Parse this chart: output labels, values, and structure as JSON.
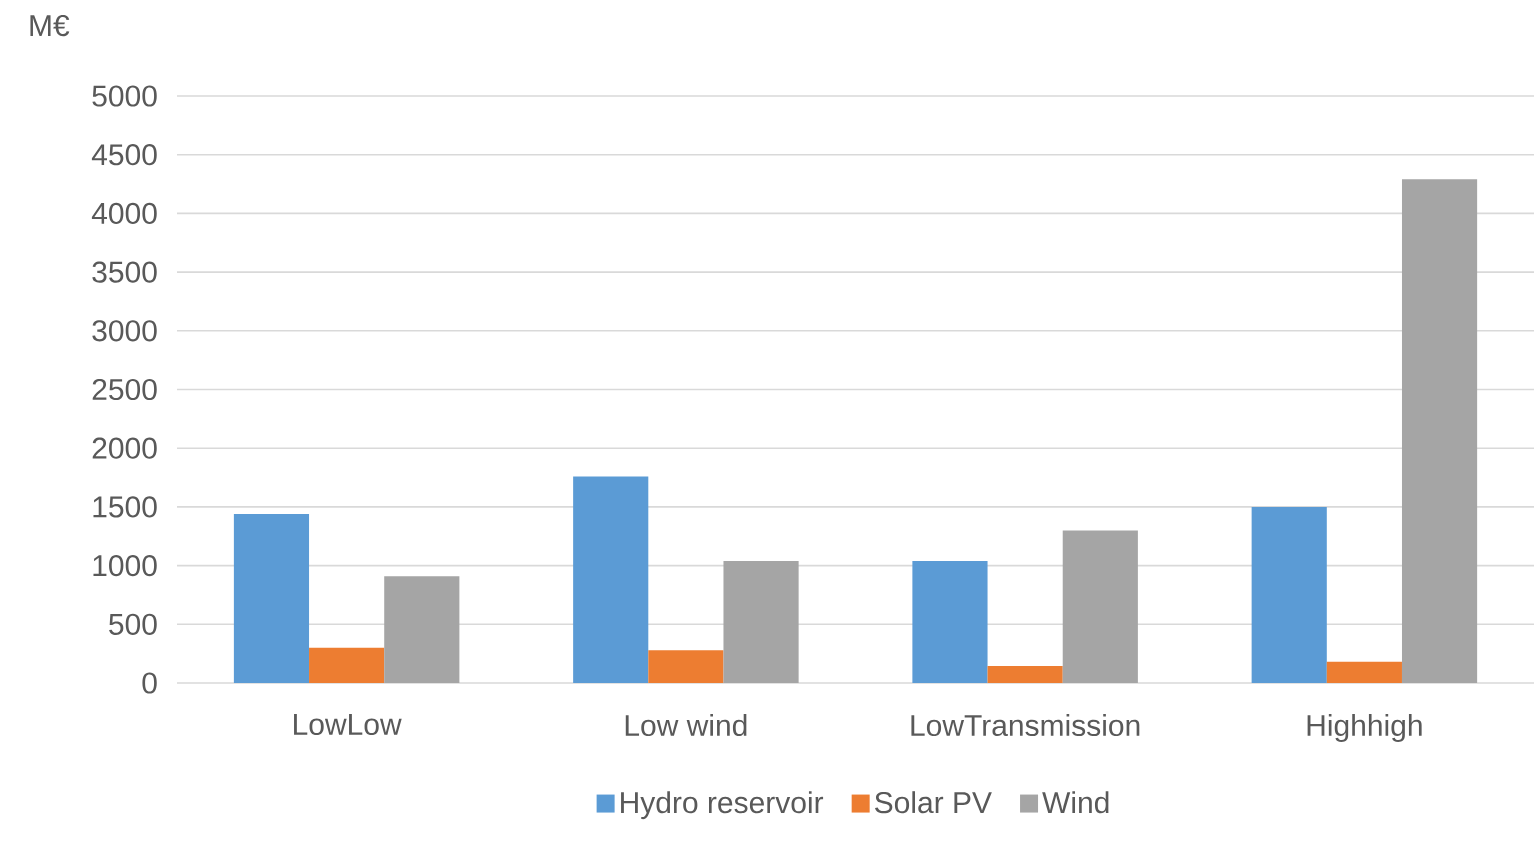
{
  "chart_data": {
    "type": "bar",
    "ylabel": "M€",
    "categories": [
      "LowLow",
      "Low wind",
      "LowTransmission",
      "Highhigh"
    ],
    "series": [
      {
        "name": "Hydro reservoir",
        "color": "#5b9bd5",
        "values": [
          1440,
          1760,
          1040,
          1500
        ]
      },
      {
        "name": "Solar PV",
        "color": "#ed7d31",
        "values": [
          300,
          280,
          145,
          180
        ]
      },
      {
        "name": "Wind",
        "color": "#a5a5a5",
        "values": [
          910,
          1040,
          1300,
          4290
        ]
      }
    ],
    "ylim": [
      0,
      5000
    ],
    "yticks": [
      0,
      500,
      1000,
      1500,
      2000,
      2500,
      3000,
      3500,
      4000,
      4500,
      5000
    ],
    "grid": "y",
    "legend": "bottom"
  }
}
